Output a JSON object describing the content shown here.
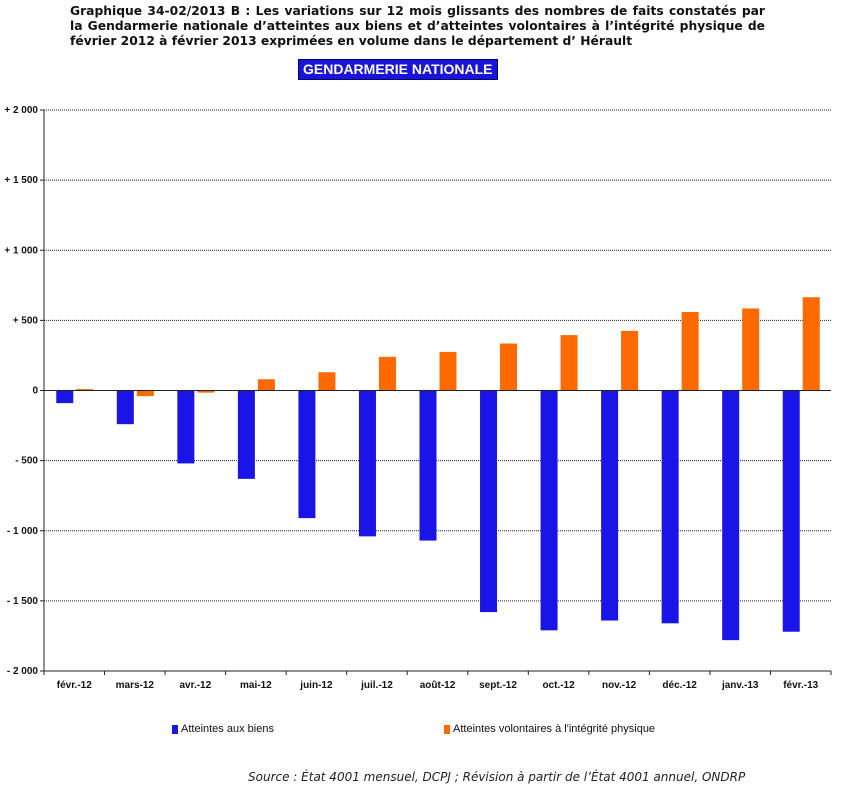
{
  "header": {
    "title": "Graphique 34-02/2013 B : Les variations sur 12 mois glissants des nombres de faits constatés par la Gendarmerie nationale d’atteintes aux biens et d’atteintes volontaires à l’intégrité physique de février 2012 à février 2013 exprimées en volume dans le département d’ Hérault",
    "badge": "GENDARMERIE NATIONALE"
  },
  "footer": {
    "source": "Source : État 4001 mensuel, DCPJ ; Révision à partir de l’État 4001 annuel, ONDRP"
  },
  "colors": {
    "series_biens": "#1a14e6",
    "series_integrite": "#ff6a00",
    "badge_bg": "#1a14d8",
    "grid": "#222222"
  },
  "chart_data": {
    "type": "bar",
    "categories": [
      "févr.-12",
      "mars-12",
      "avr.-12",
      "mai-12",
      "juin-12",
      "juil.-12",
      "août-12",
      "sept.-12",
      "oct.-12",
      "nov.-12",
      "déc.-12",
      "janv.-13",
      "févr.-13"
    ],
    "series": [
      {
        "name": "Atteintes aux biens",
        "color": "#1a14e6",
        "values": [
          -90,
          -240,
          -520,
          -630,
          -910,
          -1040,
          -1070,
          -1580,
          -1710,
          -1640,
          -1660,
          -1780,
          -1720
        ]
      },
      {
        "name": "Atteintes volontaires à l'intégrité physique",
        "color": "#ff6a00",
        "values": [
          10,
          -40,
          -15,
          80,
          130,
          240,
          275,
          335,
          395,
          425,
          560,
          585,
          665
        ]
      }
    ],
    "ylim": [
      -2000,
      2000
    ],
    "yticks": [
      2000,
      1500,
      1000,
      500,
      0,
      -500,
      -1000,
      -1500,
      -2000
    ],
    "ytick_labels": [
      "+ 2 000",
      "+ 1 500",
      "+ 1 000",
      "+ 500",
      "0",
      "- 500",
      "- 1 000",
      "- 1 500",
      "- 2 000"
    ],
    "grid": true,
    "legend_position": "bottom"
  }
}
